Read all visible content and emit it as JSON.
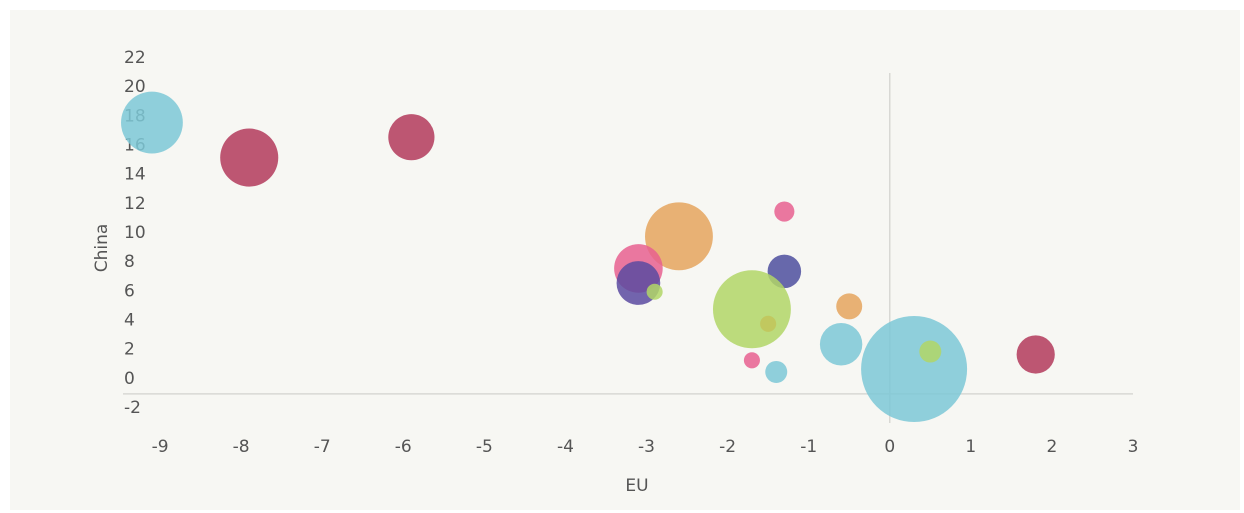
{
  "chart_data": {
    "type": "bubble",
    "xlabel": "EU",
    "ylabel": "China",
    "x": [
      -9.1,
      -7.9,
      -5.9,
      -2.6,
      -3.1,
      -3.1,
      -2.9,
      -1.3,
      -1.3,
      -1.7,
      -1.5,
      -0.5,
      -0.6,
      -1.7,
      -1.4,
      0.3,
      0.5,
      1.8
    ],
    "values": [
      18.6,
      16.2,
      17.6,
      10.8,
      8.6,
      7.6,
      7.0,
      12.5,
      8.4,
      5.8,
      4.8,
      6.0,
      3.4,
      2.3,
      1.5,
      1.7,
      2.9,
      2.7
    ],
    "sizes": [
      34,
      30,
      19,
      41,
      21,
      17,
      2.3,
      3.6,
      10,
      54,
      2.3,
      6,
      16,
      2.3,
      4.3,
      100,
      4.3,
      13
    ],
    "colors": [
      "#7cc8d6",
      "#b33a5a",
      "#b33a5a",
      "#e5a55d",
      "#e8608f",
      "#5a4aa0",
      "#b1d666",
      "#e8608f",
      "#4e4f9e",
      "#b1d666",
      "#c2c45a",
      "#e5a55d",
      "#7cc8d6",
      "#e8608f",
      "#7cc8d6",
      "#7cc8d6",
      "#b1d666",
      "#b33a5a"
    ],
    "xlim": [
      -9.5,
      3
    ],
    "ylim": [
      -2,
      22
    ],
    "xticks": [
      -9,
      -8,
      -7,
      -6,
      -5,
      -4,
      -3,
      -2,
      -1,
      0,
      1,
      2,
      3
    ],
    "yticks": [
      -2,
      0,
      2,
      4,
      6,
      8,
      10,
      12,
      14,
      16,
      18,
      20,
      22
    ],
    "zero_lines": true
  }
}
